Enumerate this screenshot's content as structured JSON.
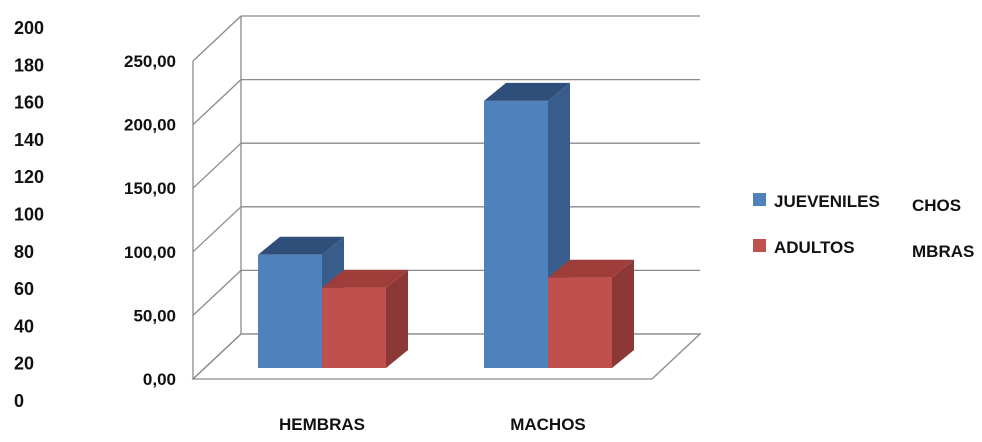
{
  "chart_data": {
    "type": "bar",
    "style": "3d-clustered-column",
    "categories": [
      "HEMBRAS",
      "MACHOS"
    ],
    "series": [
      {
        "name": "JUEVENILES",
        "values": [
          89,
          210
        ],
        "color": "#4F81BD",
        "side_color": "#385D8A",
        "top_color": "#2F4F7A"
      },
      {
        "name": "ADULTOS",
        "values": [
          63,
          71
        ],
        "color": "#C0504D",
        "side_color": "#8C3836",
        "top_color": "#9E3D3A"
      }
    ],
    "ylim": [
      0,
      250
    ],
    "yticks": [
      "0,00",
      "50,00",
      "100,00",
      "150,00",
      "200,00",
      "250,00"
    ],
    "grid": true,
    "legend_position": "right",
    "background_axis": {
      "ticks": [
        "200",
        "180",
        "160",
        "140",
        "120",
        "100",
        "80",
        "60",
        "40",
        "20",
        "0"
      ]
    },
    "background_legend": [
      "CHOS",
      "MBRAS"
    ]
  }
}
